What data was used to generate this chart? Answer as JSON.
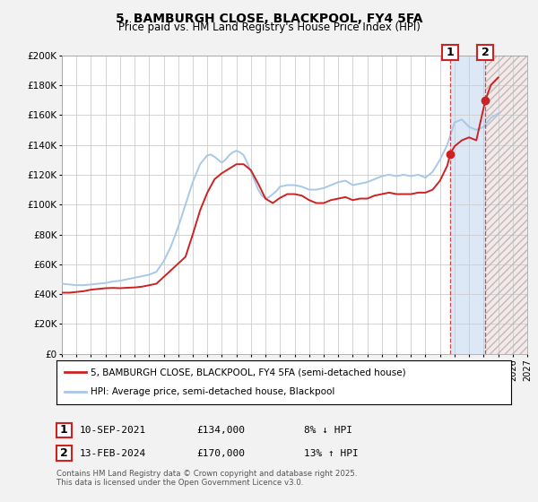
{
  "title": "5, BAMBURGH CLOSE, BLACKPOOL, FY4 5FA",
  "subtitle": "Price paid vs. HM Land Registry's House Price Index (HPI)",
  "ylim": [
    0,
    200000
  ],
  "yticks": [
    0,
    20000,
    40000,
    60000,
    80000,
    100000,
    120000,
    140000,
    160000,
    180000,
    200000
  ],
  "ytick_labels": [
    "£0",
    "£20K",
    "£40K",
    "£60K",
    "£80K",
    "£100K",
    "£120K",
    "£140K",
    "£160K",
    "£180K",
    "£200K"
  ],
  "hpi_color": "#a8c8e8",
  "price_color": "#cc2222",
  "bg_color": "#f2f2f2",
  "plot_bg": "#ffffff",
  "grid_color": "#cccccc",
  "shade1_color": "#dce8f5",
  "shade2_color": "#f5e8e8",
  "marker1_date": 2021.71,
  "marker2_date": 2024.12,
  "marker1_price": 134000,
  "marker2_price": 170000,
  "legend_line1": "5, BAMBURGH CLOSE, BLACKPOOL, FY4 5FA (semi-detached house)",
  "legend_line2": "HPI: Average price, semi-detached house, Blackpool",
  "table_row1_idx": "1",
  "table_row1_date": "10-SEP-2021",
  "table_row1_price": "£134,000",
  "table_row1_hpi": "8% ↓ HPI",
  "table_row2_idx": "2",
  "table_row2_date": "13-FEB-2024",
  "table_row2_price": "£170,000",
  "table_row2_hpi": "13% ↑ HPI",
  "footnote1": "Contains HM Land Registry data © Crown copyright and database right 2025.",
  "footnote2": "This data is licensed under the Open Government Licence v3.0.",
  "xmin": 1995,
  "xmax": 2027,
  "hpi_years": [
    1995.0,
    1995.5,
    1996.0,
    1996.5,
    1997.0,
    1997.5,
    1998.0,
    1998.5,
    1999.0,
    1999.5,
    2000.0,
    2000.5,
    2001.0,
    2001.5,
    2002.0,
    2002.5,
    2003.0,
    2003.5,
    2004.0,
    2004.5,
    2005.0,
    2005.25,
    2005.5,
    2005.75,
    2006.0,
    2006.25,
    2006.5,
    2006.75,
    2007.0,
    2007.25,
    2007.5,
    2007.75,
    2008.0,
    2008.25,
    2008.5,
    2008.75,
    2009.0,
    2009.25,
    2009.5,
    2009.75,
    2010.0,
    2010.25,
    2010.5,
    2010.75,
    2011.0,
    2011.5,
    2012.0,
    2012.5,
    2013.0,
    2013.5,
    2014.0,
    2014.5,
    2015.0,
    2015.5,
    2016.0,
    2016.5,
    2017.0,
    2017.5,
    2018.0,
    2018.5,
    2019.0,
    2019.5,
    2020.0,
    2020.5,
    2021.0,
    2021.5,
    2022.0,
    2022.5,
    2023.0,
    2023.5,
    2024.0,
    2024.5,
    2025.0
  ],
  "hpi_values": [
    47000,
    46500,
    46000,
    46000,
    46500,
    47000,
    47500,
    48500,
    49000,
    50000,
    51000,
    52000,
    53000,
    55000,
    62000,
    72000,
    85000,
    100000,
    115000,
    127000,
    133000,
    133500,
    132000,
    130000,
    128000,
    130000,
    133000,
    135000,
    136000,
    135000,
    133000,
    128000,
    122000,
    116000,
    110000,
    106000,
    104000,
    105000,
    107000,
    109000,
    112000,
    112500,
    113000,
    113000,
    113000,
    112000,
    110000,
    110000,
    111000,
    113000,
    115000,
    116000,
    113000,
    114000,
    115000,
    117000,
    119000,
    120000,
    119000,
    120000,
    119000,
    120000,
    118000,
    122000,
    130000,
    140000,
    155000,
    157000,
    152000,
    150000,
    152000,
    158000,
    161000
  ],
  "price_years": [
    1995.0,
    1995.5,
    1996.0,
    1996.5,
    1997.0,
    1997.5,
    1998.0,
    1998.5,
    1999.0,
    1999.5,
    2000.0,
    2000.5,
    2001.0,
    2001.5,
    2003.5,
    2004.0,
    2004.5,
    2005.0,
    2005.5,
    2006.0,
    2006.5,
    2007.0,
    2007.5,
    2008.0,
    2008.5,
    2009.0,
    2009.5,
    2010.0,
    2010.5,
    2011.0,
    2011.5,
    2012.0,
    2012.5,
    2013.0,
    2013.5,
    2014.0,
    2014.5,
    2015.0,
    2015.5,
    2016.0,
    2016.5,
    2017.0,
    2017.5,
    2018.0,
    2018.5,
    2019.0,
    2019.5,
    2020.0,
    2020.5,
    2021.0,
    2021.5,
    2021.71,
    2022.0,
    2022.5,
    2023.0,
    2023.5,
    2024.12,
    2024.5,
    2025.0
  ],
  "price_values": [
    41000,
    41000,
    41500,
    42000,
    43000,
    43500,
    44000,
    44200,
    44000,
    44300,
    44500,
    45000,
    46000,
    47000,
    65000,
    80000,
    96000,
    108000,
    117000,
    121000,
    124000,
    127000,
    127000,
    123000,
    114000,
    104000,
    101000,
    104500,
    107000,
    107000,
    106000,
    103000,
    101000,
    101000,
    103000,
    104000,
    105000,
    103000,
    104000,
    104000,
    106000,
    107000,
    108000,
    107000,
    107000,
    107000,
    108000,
    108000,
    110000,
    116000,
    126000,
    134000,
    139000,
    143000,
    145000,
    143000,
    170000,
    180000,
    185000
  ]
}
